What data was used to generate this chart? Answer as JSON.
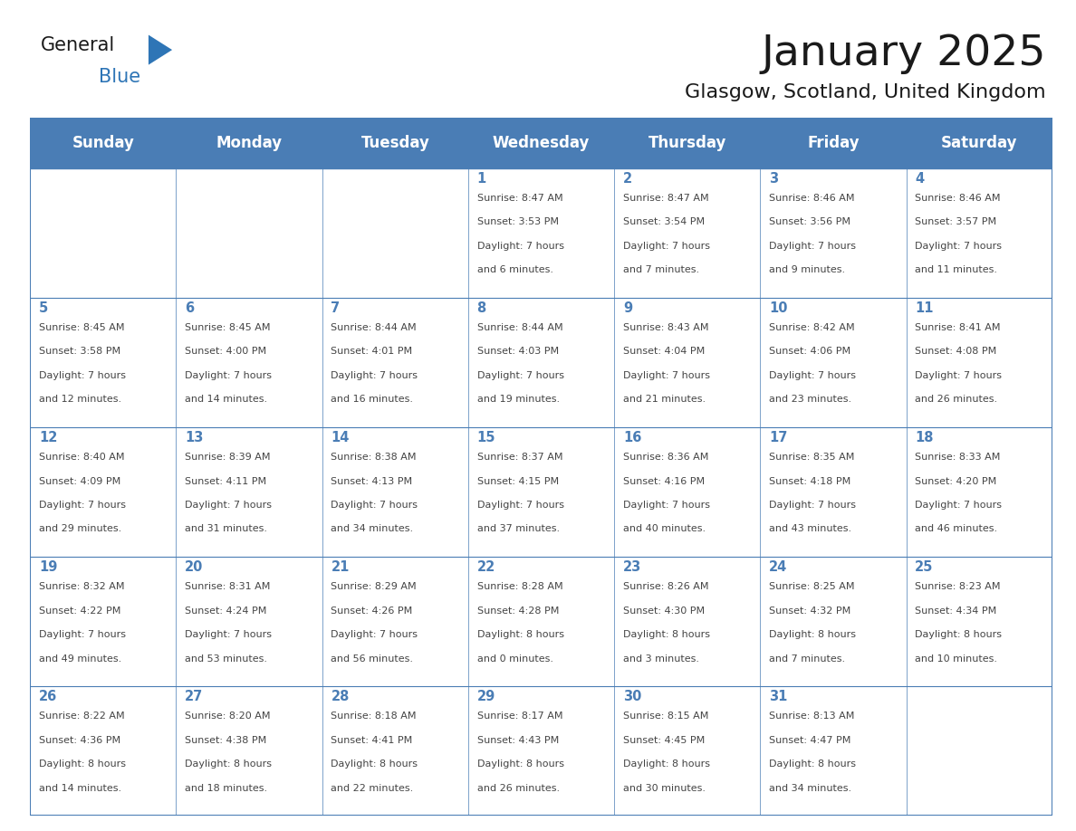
{
  "title": "January 2025",
  "subtitle": "Glasgow, Scotland, United Kingdom",
  "days_of_week": [
    "Sunday",
    "Monday",
    "Tuesday",
    "Wednesday",
    "Thursday",
    "Friday",
    "Saturday"
  ],
  "header_bg": "#4a7db5",
  "header_text_color": "#FFFFFF",
  "cell_bg_light": "#FFFFFF",
  "cell_bg_alt": "#f0f4f8",
  "border_color": "#4a7db5",
  "day_number_color": "#4a7db5",
  "text_color": "#444444",
  "title_color": "#1a1a1a",
  "logo_general_color": "#1a1a1a",
  "logo_blue_color": "#2E75B6",
  "calendar_data": [
    [
      {
        "day": null,
        "sunrise": null,
        "sunset": null,
        "daylight": null
      },
      {
        "day": null,
        "sunrise": null,
        "sunset": null,
        "daylight": null
      },
      {
        "day": null,
        "sunrise": null,
        "sunset": null,
        "daylight": null
      },
      {
        "day": 1,
        "sunrise": "8:47 AM",
        "sunset": "3:53 PM",
        "daylight": "7 hours\nand 6 minutes."
      },
      {
        "day": 2,
        "sunrise": "8:47 AM",
        "sunset": "3:54 PM",
        "daylight": "7 hours\nand 7 minutes."
      },
      {
        "day": 3,
        "sunrise": "8:46 AM",
        "sunset": "3:56 PM",
        "daylight": "7 hours\nand 9 minutes."
      },
      {
        "day": 4,
        "sunrise": "8:46 AM",
        "sunset": "3:57 PM",
        "daylight": "7 hours\nand 11 minutes."
      }
    ],
    [
      {
        "day": 5,
        "sunrise": "8:45 AM",
        "sunset": "3:58 PM",
        "daylight": "7 hours\nand 12 minutes."
      },
      {
        "day": 6,
        "sunrise": "8:45 AM",
        "sunset": "4:00 PM",
        "daylight": "7 hours\nand 14 minutes."
      },
      {
        "day": 7,
        "sunrise": "8:44 AM",
        "sunset": "4:01 PM",
        "daylight": "7 hours\nand 16 minutes."
      },
      {
        "day": 8,
        "sunrise": "8:44 AM",
        "sunset": "4:03 PM",
        "daylight": "7 hours\nand 19 minutes."
      },
      {
        "day": 9,
        "sunrise": "8:43 AM",
        "sunset": "4:04 PM",
        "daylight": "7 hours\nand 21 minutes."
      },
      {
        "day": 10,
        "sunrise": "8:42 AM",
        "sunset": "4:06 PM",
        "daylight": "7 hours\nand 23 minutes."
      },
      {
        "day": 11,
        "sunrise": "8:41 AM",
        "sunset": "4:08 PM",
        "daylight": "7 hours\nand 26 minutes."
      }
    ],
    [
      {
        "day": 12,
        "sunrise": "8:40 AM",
        "sunset": "4:09 PM",
        "daylight": "7 hours\nand 29 minutes."
      },
      {
        "day": 13,
        "sunrise": "8:39 AM",
        "sunset": "4:11 PM",
        "daylight": "7 hours\nand 31 minutes."
      },
      {
        "day": 14,
        "sunrise": "8:38 AM",
        "sunset": "4:13 PM",
        "daylight": "7 hours\nand 34 minutes."
      },
      {
        "day": 15,
        "sunrise": "8:37 AM",
        "sunset": "4:15 PM",
        "daylight": "7 hours\nand 37 minutes."
      },
      {
        "day": 16,
        "sunrise": "8:36 AM",
        "sunset": "4:16 PM",
        "daylight": "7 hours\nand 40 minutes."
      },
      {
        "day": 17,
        "sunrise": "8:35 AM",
        "sunset": "4:18 PM",
        "daylight": "7 hours\nand 43 minutes."
      },
      {
        "day": 18,
        "sunrise": "8:33 AM",
        "sunset": "4:20 PM",
        "daylight": "7 hours\nand 46 minutes."
      }
    ],
    [
      {
        "day": 19,
        "sunrise": "8:32 AM",
        "sunset": "4:22 PM",
        "daylight": "7 hours\nand 49 minutes."
      },
      {
        "day": 20,
        "sunrise": "8:31 AM",
        "sunset": "4:24 PM",
        "daylight": "7 hours\nand 53 minutes."
      },
      {
        "day": 21,
        "sunrise": "8:29 AM",
        "sunset": "4:26 PM",
        "daylight": "7 hours\nand 56 minutes."
      },
      {
        "day": 22,
        "sunrise": "8:28 AM",
        "sunset": "4:28 PM",
        "daylight": "8 hours\nand 0 minutes."
      },
      {
        "day": 23,
        "sunrise": "8:26 AM",
        "sunset": "4:30 PM",
        "daylight": "8 hours\nand 3 minutes."
      },
      {
        "day": 24,
        "sunrise": "8:25 AM",
        "sunset": "4:32 PM",
        "daylight": "8 hours\nand 7 minutes."
      },
      {
        "day": 25,
        "sunrise": "8:23 AM",
        "sunset": "4:34 PM",
        "daylight": "8 hours\nand 10 minutes."
      }
    ],
    [
      {
        "day": 26,
        "sunrise": "8:22 AM",
        "sunset": "4:36 PM",
        "daylight": "8 hours\nand 14 minutes."
      },
      {
        "day": 27,
        "sunrise": "8:20 AM",
        "sunset": "4:38 PM",
        "daylight": "8 hours\nand 18 minutes."
      },
      {
        "day": 28,
        "sunrise": "8:18 AM",
        "sunset": "4:41 PM",
        "daylight": "8 hours\nand 22 minutes."
      },
      {
        "day": 29,
        "sunrise": "8:17 AM",
        "sunset": "4:43 PM",
        "daylight": "8 hours\nand 26 minutes."
      },
      {
        "day": 30,
        "sunrise": "8:15 AM",
        "sunset": "4:45 PM",
        "daylight": "8 hours\nand 30 minutes."
      },
      {
        "day": 31,
        "sunrise": "8:13 AM",
        "sunset": "4:47 PM",
        "daylight": "8 hours\nand 34 minutes."
      },
      {
        "day": null,
        "sunrise": null,
        "sunset": null,
        "daylight": null
      }
    ]
  ]
}
